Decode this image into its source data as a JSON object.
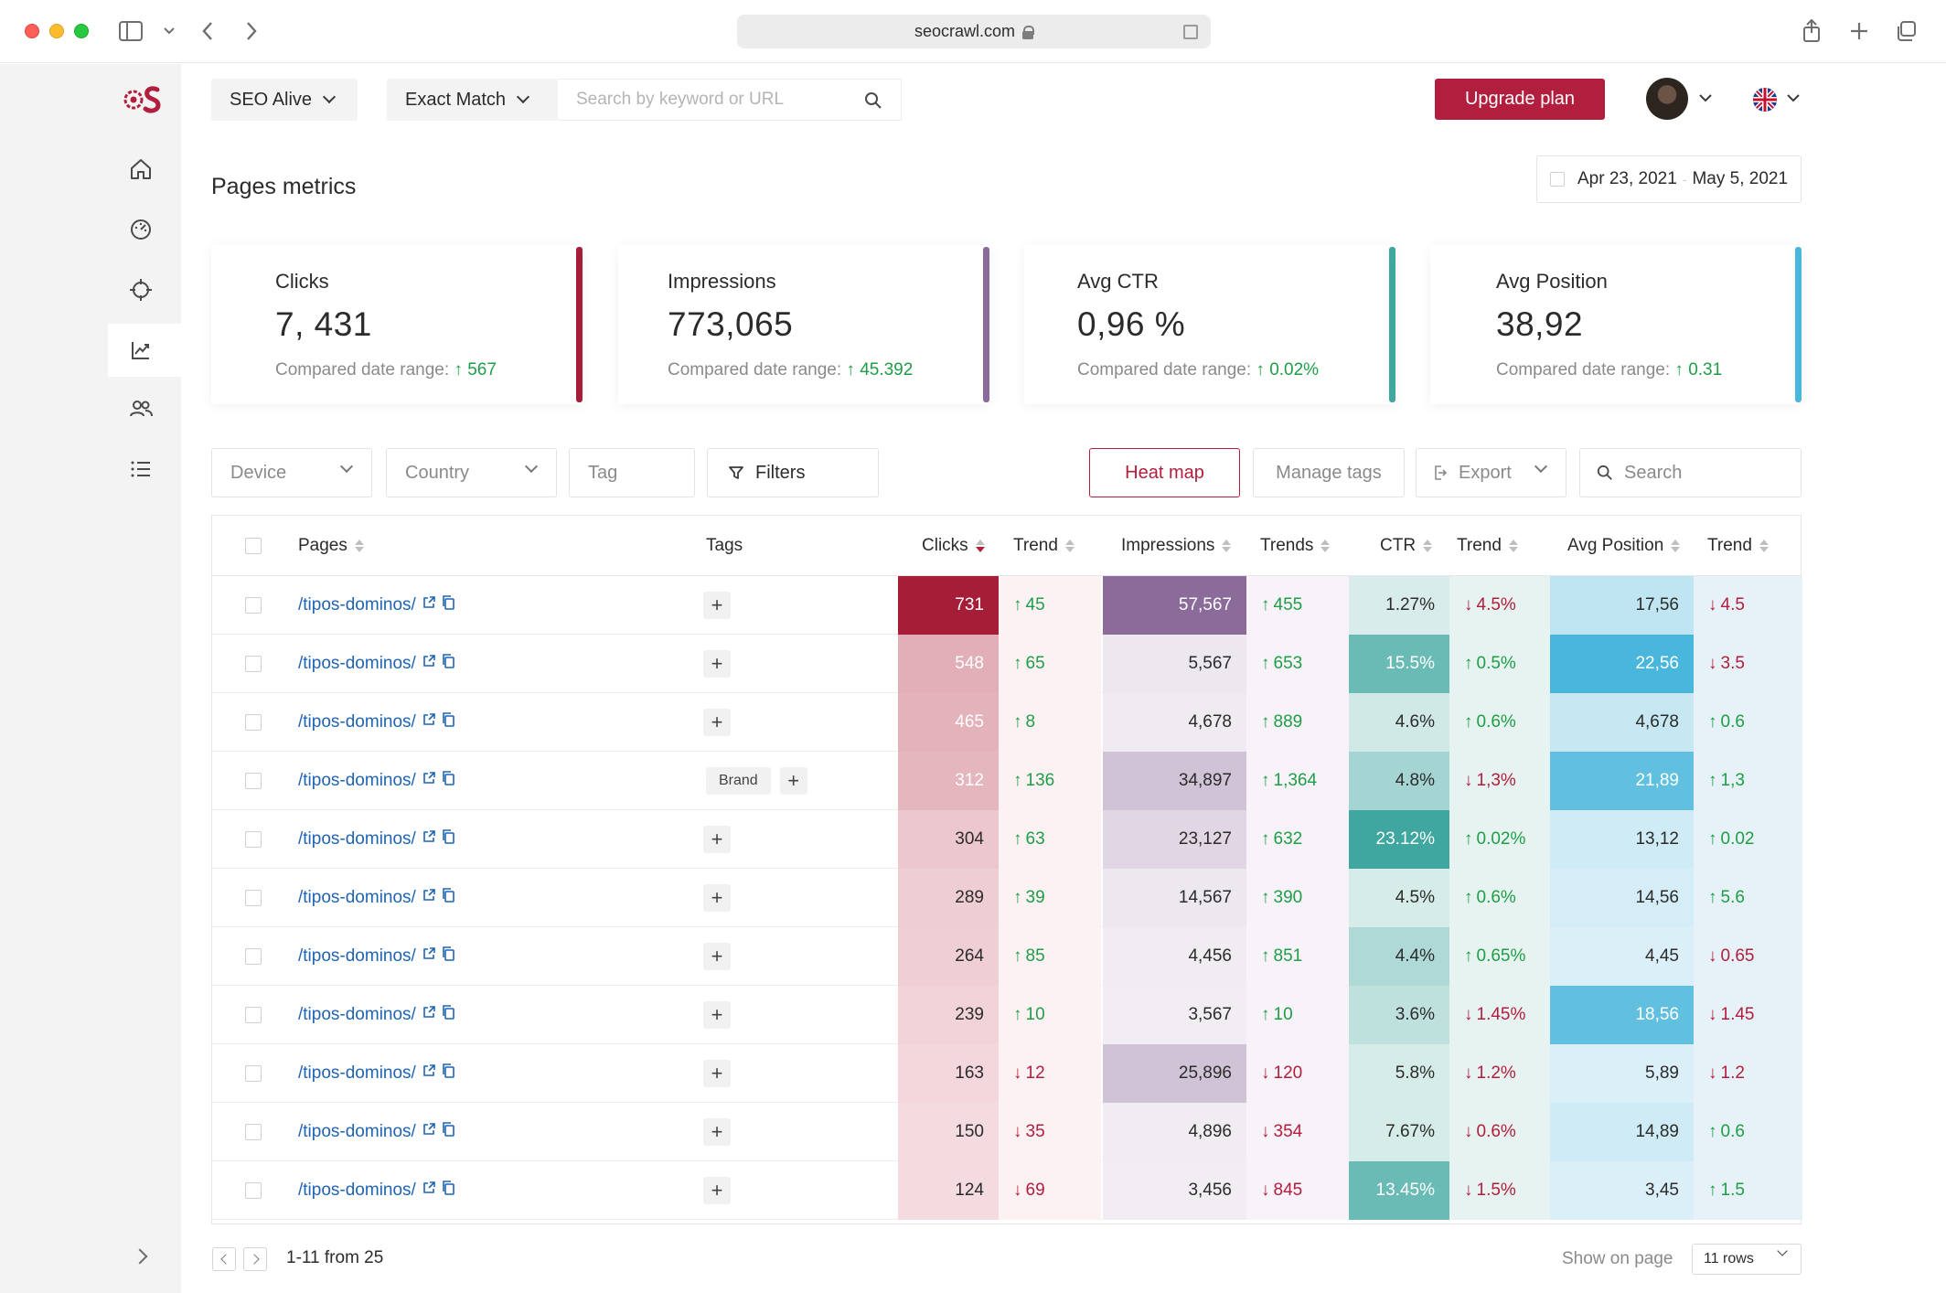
{
  "browser": {
    "url": "seocrawl.com"
  },
  "colors": {
    "accent": "#b21e3d",
    "clicks": "#a61d37",
    "impressions": "#8b6b9a",
    "ctr": "#3fa6a0",
    "position": "#49b7dc",
    "up": "#1e9e47",
    "down": "#b21e3d"
  },
  "topbar": {
    "project": "SEO Alive",
    "match_type": "Exact Match",
    "search_placeholder": "Search by keyword or URL",
    "upgrade_label": "Upgrade plan"
  },
  "page": {
    "title": "Pages metrics",
    "date_start": "Apr 23, 2021",
    "date_sep": "-",
    "date_end": "May 5, 2021"
  },
  "cards": [
    {
      "label": "Clicks",
      "value": "7, 431",
      "compare_label": "Compared date range:",
      "delta": "567"
    },
    {
      "label": "Impressions",
      "value": "773,065",
      "compare_label": "Compared date range:",
      "delta": "45.392"
    },
    {
      "label": "Avg CTR",
      "value": "0,96 %",
      "compare_label": "Compared date range:",
      "delta": "0.02%"
    },
    {
      "label": "Avg Position",
      "value": "38,92",
      "compare_label": "Compared date range:",
      "delta": "0.31"
    }
  ],
  "filters": {
    "device": "Device",
    "country": "Country",
    "tag": "Tag",
    "filters": "Filters",
    "heatmap": "Heat map",
    "manage_tags": "Manage tags",
    "export": "Export",
    "search": "Search"
  },
  "table": {
    "headers": {
      "pages": "Pages",
      "tags": "Tags",
      "clicks": "Clicks",
      "trend1": "Trend",
      "impressions": "Impressions",
      "trends2": "Trends",
      "ctr": "CTR",
      "trend3": "Trend",
      "position": "Avg Position",
      "trend4": "Trend"
    },
    "tag_add": "+",
    "rows": [
      {
        "page": "/tipos-dominos/",
        "tag": "",
        "clicks": "731",
        "clicks_heat": 1.0,
        "clicks_trend": "45",
        "clicks_dir": "up",
        "impressions": "57,567",
        "imp_heat": 1.0,
        "imp_trend": "455",
        "imp_dir": "up",
        "ctr": "1.27%",
        "ctr_heat": 0.1,
        "ctr_trend": "4.5%",
        "ctr_dir": "down",
        "position": "17,56",
        "pos_heat": 0.25,
        "pos_trend": "4.5",
        "pos_dir": "down"
      },
      {
        "page": "/tipos-dominos/",
        "tag": "",
        "clicks": "548",
        "clicks_heat": 0.3,
        "clicks_trend": "65",
        "clicks_dir": "up",
        "impressions": "5,567",
        "imp_heat": 0.08,
        "imp_trend": "653",
        "imp_dir": "up",
        "ctr": "15.5%",
        "ctr_heat": 0.75,
        "ctr_trend": "0.5%",
        "ctr_dir": "up",
        "position": "22,56",
        "pos_heat": 1.0,
        "pos_trend": "3.5",
        "pos_dir": "down"
      },
      {
        "page": "/tipos-dominos/",
        "tag": "",
        "clicks": "465",
        "clicks_heat": 0.28,
        "clicks_trend": "8",
        "clicks_dir": "up",
        "impressions": "4,678",
        "imp_heat": 0.06,
        "imp_trend": "889",
        "imp_dir": "up",
        "ctr": "4.6%",
        "ctr_heat": 0.15,
        "ctr_trend": "0.6%",
        "ctr_dir": "up",
        "position": "4,678",
        "pos_heat": 0.2,
        "pos_trend": "0.6",
        "pos_dir": "up"
      },
      {
        "page": "/tipos-dominos/",
        "tag": "Brand",
        "clicks": "312",
        "clicks_heat": 0.26,
        "clicks_trend": "136",
        "clicks_dir": "up",
        "impressions": "34,897",
        "imp_heat": 0.35,
        "imp_trend": "1,364",
        "imp_dir": "up",
        "ctr": "4.8%",
        "ctr_heat": 0.4,
        "ctr_trend": "1,3%",
        "ctr_dir": "down",
        "position": "21,89",
        "pos_heat": 0.85,
        "pos_trend": "1,3",
        "pos_dir": "up"
      },
      {
        "page": "/tipos-dominos/",
        "tag": "",
        "clicks": "304",
        "clicks_heat": 0.18,
        "clicks_trend": "63",
        "clicks_dir": "up",
        "impressions": "23,127",
        "imp_heat": 0.2,
        "imp_trend": "632",
        "imp_dir": "up",
        "ctr": "23.12%",
        "ctr_heat": 1.0,
        "ctr_trend": "0.02%",
        "ctr_dir": "up",
        "position": "13,12",
        "pos_heat": 0.15,
        "pos_trend": "0.02",
        "pos_dir": "up"
      },
      {
        "page": "/tipos-dominos/",
        "tag": "",
        "clicks": "289",
        "clicks_heat": 0.15,
        "clicks_trend": "39",
        "clicks_dir": "up",
        "impressions": "14,567",
        "imp_heat": 0.08,
        "imp_trend": "390",
        "imp_dir": "up",
        "ctr": "4.5%",
        "ctr_heat": 0.12,
        "ctr_trend": "0.6%",
        "ctr_dir": "up",
        "position": "14,56",
        "pos_heat": 0.12,
        "pos_trend": "5.6",
        "pos_dir": "up"
      },
      {
        "page": "/tipos-dominos/",
        "tag": "",
        "clicks": "264",
        "clicks_heat": 0.14,
        "clicks_trend": "85",
        "clicks_dir": "up",
        "impressions": "4,456",
        "imp_heat": 0.05,
        "imp_trend": "851",
        "imp_dir": "up",
        "ctr": "4.4%",
        "ctr_heat": 0.35,
        "ctr_trend": "0.65%",
        "ctr_dir": "up",
        "position": "4,45",
        "pos_heat": 0.08,
        "pos_trend": "0.65",
        "pos_dir": "down"
      },
      {
        "page": "/tipos-dominos/",
        "tag": "",
        "clicks": "239",
        "clicks_heat": 0.12,
        "clicks_trend": "10",
        "clicks_dir": "up",
        "impressions": "3,567",
        "imp_heat": 0.04,
        "imp_trend": "10",
        "imp_dir": "up",
        "ctr": "3.6%",
        "ctr_heat": 0.25,
        "ctr_trend": "1.45%",
        "ctr_dir": "down",
        "position": "18,56",
        "pos_heat": 0.85,
        "pos_trend": "1.45",
        "pos_dir": "down"
      },
      {
        "page": "/tipos-dominos/",
        "tag": "",
        "clicks": "163",
        "clicks_heat": 0.1,
        "clicks_trend": "12",
        "clicks_dir": "down",
        "impressions": "25,896",
        "imp_heat": 0.35,
        "imp_trend": "120",
        "imp_dir": "down",
        "ctr": "5.8%",
        "ctr_heat": 0.12,
        "ctr_trend": "1.2%",
        "ctr_dir": "down",
        "position": "5,89",
        "pos_heat": 0.08,
        "pos_trend": "1.2",
        "pos_dir": "down"
      },
      {
        "page": "/tipos-dominos/",
        "tag": "",
        "clicks": "150",
        "clicks_heat": 0.08,
        "clicks_trend": "35",
        "clicks_dir": "down",
        "impressions": "4,896",
        "imp_heat": 0.05,
        "imp_trend": "354",
        "imp_dir": "down",
        "ctr": "7.67%",
        "ctr_heat": 0.12,
        "ctr_trend": "0.6%",
        "ctr_dir": "down",
        "position": "14,89",
        "pos_heat": 0.15,
        "pos_trend": "0.6",
        "pos_dir": "up"
      },
      {
        "page": "/tipos-dominos/",
        "tag": "",
        "clicks": "124",
        "clicks_heat": 0.08,
        "clicks_trend": "69",
        "clicks_dir": "down",
        "impressions": "3,456",
        "imp_heat": 0.04,
        "imp_trend": "845",
        "imp_dir": "down",
        "ctr": "13.45%",
        "ctr_heat": 0.75,
        "ctr_trend": "1.5%",
        "ctr_dir": "down",
        "position": "3,45",
        "pos_heat": 0.08,
        "pos_trend": "1.5",
        "pos_dir": "up"
      }
    ]
  },
  "pagination": {
    "info": "1-11 from 25",
    "show_on_page": "Show on page",
    "rows_option": "11 rows"
  }
}
